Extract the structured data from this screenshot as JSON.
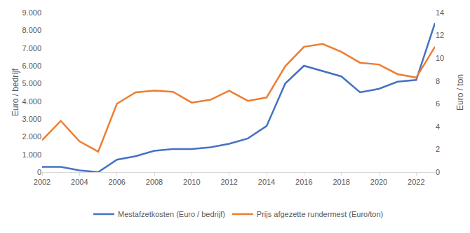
{
  "chart_data": {
    "type": "line",
    "x": [
      2002,
      2003,
      2004,
      2005,
      2006,
      2007,
      2008,
      2009,
      2010,
      2011,
      2012,
      2013,
      2014,
      2015,
      2016,
      2017,
      2018,
      2019,
      2020,
      2021,
      2022,
      2023
    ],
    "series": [
      {
        "name": "Mestafzetkosten (Euro / bedrijf)",
        "color": "#4472c4",
        "values": [
          300,
          300,
          100,
          0,
          700,
          900,
          1200,
          1300,
          1300,
          1400,
          1600,
          1900,
          2600,
          5000,
          6000,
          5700,
          5400,
          4500,
          4700,
          5100,
          5200,
          8400
        ]
      },
      {
        "name": "Prijs afgezette rundermest (Euro/ton)",
        "color": "#ed7d31",
        "axis": "y2",
        "values": [
          2.8,
          4.5,
          2.7,
          1.8,
          6.0,
          7.0,
          7.15,
          7.05,
          6.1,
          6.35,
          7.15,
          6.25,
          6.55,
          9.3,
          11.0,
          11.25,
          10.55,
          9.6,
          9.45,
          8.6,
          8.3,
          11.0
        ]
      }
    ],
    "y_label": "Euro / bedrijf",
    "y2_label": "Euro / ton",
    "xlim": [
      2002,
      2023
    ],
    "xticks": [
      2002,
      2004,
      2006,
      2008,
      2010,
      2012,
      2014,
      2016,
      2018,
      2020,
      2022
    ],
    "ylim": [
      0,
      9000
    ],
    "yticks": [
      0,
      {
        "value": 1000,
        "label": "1.000"
      },
      {
        "value": 2000,
        "label": "2.000"
      },
      {
        "value": 3000,
        "label": "3.000"
      },
      {
        "value": 4000,
        "label": "4.000"
      },
      {
        "value": 5000,
        "label": "5.000"
      },
      {
        "value": 6000,
        "label": "6.000"
      },
      {
        "value": 7000,
        "label": "7.000"
      },
      {
        "value": 8000,
        "label": "8.000"
      },
      {
        "value": 9000,
        "label": "9.000"
      }
    ],
    "y2lim": [
      0,
      14
    ],
    "y2ticks": [
      0,
      2,
      4,
      6,
      8,
      10,
      12,
      14
    ],
    "grid": false,
    "legend": "bottom"
  }
}
